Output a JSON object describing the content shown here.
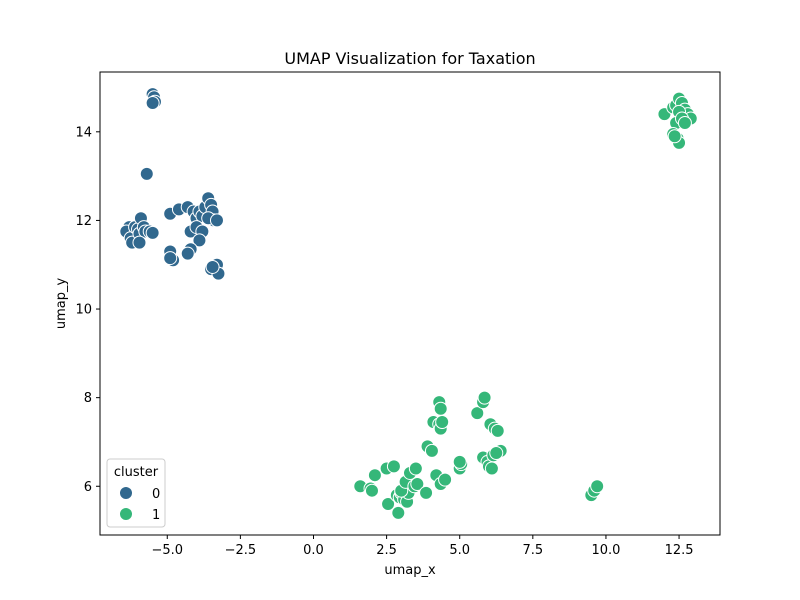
{
  "chart_data": {
    "type": "scatter",
    "title": "UMAP Visualization for Taxation",
    "xlabel": "umap_x",
    "ylabel": "umap_y",
    "xlim": [
      -7.3,
      13.9
    ],
    "ylim": [
      4.9,
      15.35
    ],
    "xticks": [
      -5.0,
      -2.5,
      0.0,
      2.5,
      5.0,
      7.5,
      10.0,
      12.5
    ],
    "xtick_labels": [
      "−5.0",
      "−2.5",
      "0.0",
      "2.5",
      "5.0",
      "7.5",
      "10.0",
      "12.5"
    ],
    "yticks": [
      6,
      8,
      10,
      12,
      14
    ],
    "ytick_labels": [
      "6",
      "8",
      "10",
      "12",
      "14"
    ],
    "grid": false,
    "legend": {
      "title": "cluster",
      "placement": "lower-left"
    },
    "series": [
      {
        "name": "0",
        "color": "#31688e",
        "points": [
          [
            -5.5,
            14.85
          ],
          [
            -5.45,
            14.78
          ],
          [
            -5.42,
            14.68
          ],
          [
            -5.5,
            14.65
          ],
          [
            -5.7,
            13.05
          ],
          [
            -6.3,
            11.85
          ],
          [
            -6.4,
            11.75
          ],
          [
            -6.25,
            11.6
          ],
          [
            -6.2,
            11.5
          ],
          [
            -6.1,
            11.85
          ],
          [
            -6.0,
            11.8
          ],
          [
            -5.95,
            11.7
          ],
          [
            -5.9,
            12.05
          ],
          [
            -5.8,
            11.85
          ],
          [
            -5.75,
            11.75
          ],
          [
            -5.6,
            11.75
          ],
          [
            -5.5,
            11.72
          ],
          [
            -5.95,
            11.5
          ],
          [
            -4.9,
            12.15
          ],
          [
            -4.6,
            12.25
          ],
          [
            -4.3,
            12.3
          ],
          [
            -4.1,
            12.2
          ],
          [
            -4.0,
            12.05
          ],
          [
            -3.9,
            12.2
          ],
          [
            -3.8,
            12.1
          ],
          [
            -3.7,
            12.3
          ],
          [
            -3.6,
            12.5
          ],
          [
            -3.5,
            12.35
          ],
          [
            -3.45,
            12.2
          ],
          [
            -3.4,
            12.0
          ],
          [
            -3.6,
            12.05
          ],
          [
            -3.3,
            12.0
          ],
          [
            -4.2,
            11.75
          ],
          [
            -4.0,
            11.85
          ],
          [
            -3.8,
            11.75
          ],
          [
            -3.9,
            11.55
          ],
          [
            -4.2,
            11.35
          ],
          [
            -4.3,
            11.25
          ],
          [
            -4.9,
            11.3
          ],
          [
            -4.8,
            11.1
          ],
          [
            -4.9,
            11.15
          ],
          [
            -3.5,
            10.9
          ],
          [
            -3.3,
            11.0
          ],
          [
            -3.25,
            10.8
          ],
          [
            -3.45,
            10.95
          ]
        ]
      },
      {
        "name": "1",
        "color": "#35b779",
        "points": [
          [
            12.0,
            14.4
          ],
          [
            12.3,
            14.55
          ],
          [
            12.4,
            14.6
          ],
          [
            12.5,
            14.75
          ],
          [
            12.6,
            14.65
          ],
          [
            12.7,
            14.5
          ],
          [
            12.8,
            14.4
          ],
          [
            12.9,
            14.3
          ],
          [
            12.5,
            14.45
          ],
          [
            12.4,
            14.2
          ],
          [
            12.6,
            14.3
          ],
          [
            12.7,
            14.2
          ],
          [
            12.3,
            13.95
          ],
          [
            12.45,
            13.85
          ],
          [
            12.5,
            13.75
          ],
          [
            12.35,
            13.9
          ],
          [
            1.6,
            6.0
          ],
          [
            1.95,
            5.95
          ],
          [
            2.0,
            5.9
          ],
          [
            2.1,
            6.25
          ],
          [
            2.5,
            6.4
          ],
          [
            2.75,
            6.45
          ],
          [
            2.55,
            5.6
          ],
          [
            2.85,
            5.8
          ],
          [
            2.95,
            5.75
          ],
          [
            3.0,
            5.85
          ],
          [
            3.1,
            5.7
          ],
          [
            3.2,
            5.65
          ],
          [
            3.25,
            5.85
          ],
          [
            3.0,
            5.9
          ],
          [
            2.9,
            5.4
          ],
          [
            3.15,
            6.1
          ],
          [
            3.3,
            6.3
          ],
          [
            3.5,
            6.4
          ],
          [
            3.45,
            6.0
          ],
          [
            3.55,
            6.05
          ],
          [
            3.85,
            5.85
          ],
          [
            3.9,
            6.9
          ],
          [
            4.05,
            6.8
          ],
          [
            4.1,
            7.45
          ],
          [
            4.2,
            6.25
          ],
          [
            4.3,
            7.9
          ],
          [
            4.35,
            7.75
          ],
          [
            4.3,
            7.4
          ],
          [
            4.35,
            7.3
          ],
          [
            4.4,
            7.45
          ],
          [
            4.35,
            6.05
          ],
          [
            4.5,
            6.15
          ],
          [
            5.0,
            6.4
          ],
          [
            5.05,
            6.5
          ],
          [
            5.0,
            6.55
          ],
          [
            5.6,
            7.65
          ],
          [
            5.8,
            7.9
          ],
          [
            5.85,
            8.0
          ],
          [
            5.8,
            6.65
          ],
          [
            5.95,
            6.55
          ],
          [
            6.0,
            6.45
          ],
          [
            6.05,
            7.4
          ],
          [
            6.1,
            6.4
          ],
          [
            6.2,
            7.3
          ],
          [
            6.3,
            7.25
          ],
          [
            6.15,
            6.7
          ],
          [
            6.4,
            6.8
          ],
          [
            6.25,
            6.75
          ],
          [
            9.5,
            5.8
          ],
          [
            9.6,
            5.9
          ],
          [
            9.7,
            6.0
          ]
        ]
      }
    ]
  }
}
